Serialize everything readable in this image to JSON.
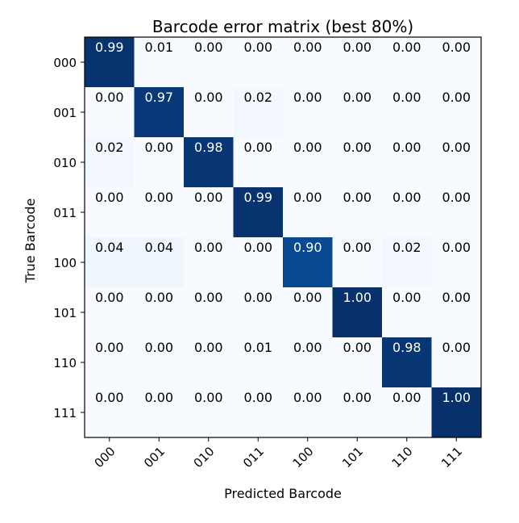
{
  "chart_data": {
    "type": "heatmap",
    "title": "Barcode error matrix (best 80%)",
    "xlabel": "Predicted Barcode",
    "ylabel": "True Barcode",
    "x_categories": [
      "000",
      "001",
      "010",
      "011",
      "100",
      "101",
      "110",
      "111"
    ],
    "y_categories": [
      "000",
      "001",
      "010",
      "011",
      "100",
      "101",
      "110",
      "111"
    ],
    "values": [
      [
        0.99,
        0.01,
        0.0,
        0.0,
        0.0,
        0.0,
        0.0,
        0.0
      ],
      [
        0.0,
        0.97,
        0.0,
        0.02,
        0.0,
        0.0,
        0.0,
        0.0
      ],
      [
        0.02,
        0.0,
        0.98,
        0.0,
        0.0,
        0.0,
        0.0,
        0.0
      ],
      [
        0.0,
        0.0,
        0.0,
        0.99,
        0.0,
        0.0,
        0.0,
        0.0
      ],
      [
        0.04,
        0.04,
        0.0,
        0.0,
        0.9,
        0.0,
        0.02,
        0.0
      ],
      [
        0.0,
        0.0,
        0.0,
        0.0,
        0.0,
        1.0,
        0.0,
        0.0
      ],
      [
        0.0,
        0.0,
        0.0,
        0.01,
        0.0,
        0.0,
        0.98,
        0.0
      ],
      [
        0.0,
        0.0,
        0.0,
        0.0,
        0.0,
        0.0,
        0.0,
        1.0
      ]
    ],
    "value_format": "2-decimal",
    "colormap": "Blues",
    "vmin": 0,
    "vmax": 1,
    "grid": false,
    "legend": "none",
    "colors": {
      "low": "#f7fbff",
      "high": "#08306b",
      "text_dark": "#000000",
      "text_light": "#ffffff",
      "axis": "#000000"
    }
  }
}
